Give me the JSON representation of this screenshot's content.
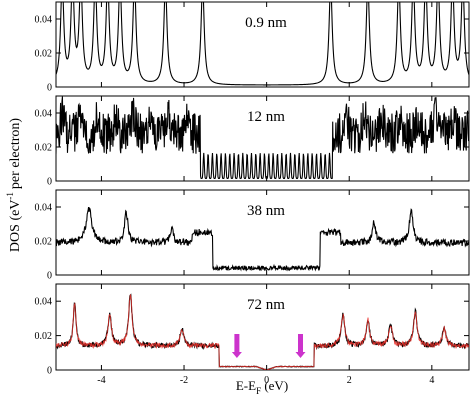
{
  "chart_data": {
    "type": "line",
    "xlabel": "E-E",
    "xlabel_sub": "F",
    "xlabel_unit": " (eV)",
    "ylabel_main": "DOS (eV",
    "ylabel_sup": "-1",
    "ylabel_tail": "per electron)",
    "xlim": [
      -5.1,
      4.9
    ],
    "x_ticks": [
      -4,
      -2,
      0,
      2,
      4
    ],
    "x_tick_labels": [
      "-4",
      "-2",
      "0",
      "2",
      "4"
    ],
    "ylim": [
      0,
      0.05
    ],
    "y_ticks": [
      0,
      0.02,
      0.04
    ],
    "y_tick_labels": [
      "0",
      "0.02",
      "0.04"
    ],
    "grid": false,
    "panels": [
      {
        "label": "0.9 nm",
        "gap": [
          -3.0,
          3.0
        ],
        "series": [
          {
            "color": "#000000",
            "peaks": [
              -4.95,
              -4.7,
              -4.5,
              -4.15,
              -3.85,
              -3.55,
              -3.2,
              -2.45,
              -1.55,
              1.55,
              2.45,
              3.2,
              3.55,
              3.85,
              4.15,
              4.5,
              4.75
            ],
            "shape": "discrete"
          }
        ]
      },
      {
        "label": "12 nm",
        "gap": [
          -1.6,
          1.6
        ],
        "series": [
          {
            "color": "#000000",
            "level": 0.028,
            "shape": "subbands"
          }
        ]
      },
      {
        "label": "38 nm",
        "gap": [
          -1.3,
          1.3
        ],
        "series": [
          {
            "color": "#000000",
            "level": 0.019,
            "shape": "bulk"
          }
        ]
      },
      {
        "label": "72 nm",
        "gap": [
          -1.15,
          1.15
        ],
        "series": [
          {
            "color": "#000000",
            "level": 0.014,
            "shape": "smooth"
          },
          {
            "color": "#e8302a",
            "level": 0.014,
            "shape": "smooth"
          }
        ],
        "arrows": [
          {
            "x": -0.72,
            "color": "#cc33cc"
          },
          {
            "x": 0.82,
            "color": "#cc33cc"
          }
        ]
      }
    ]
  }
}
